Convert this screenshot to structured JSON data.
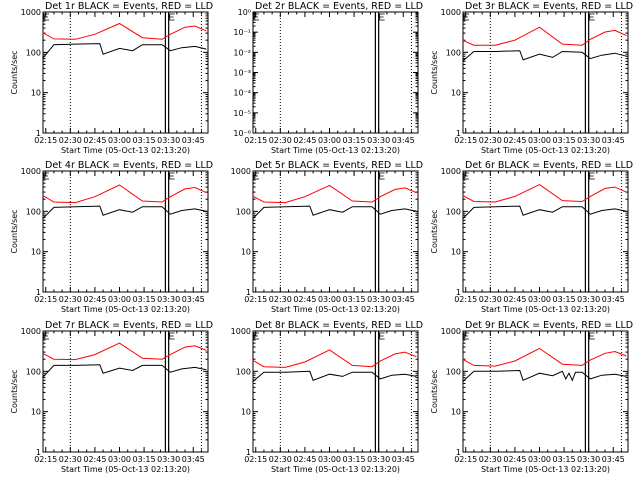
{
  "colors": {
    "events": "#000000",
    "lld": "#ff0000",
    "background": "#ffffff"
  },
  "chart_data": [
    {
      "type": "line",
      "title": "Det 1r BLACK = Events, RED = LLD",
      "xlabel": "Start Time (05-Oct-13 02:13:20)",
      "ylabel": "Counts/sec",
      "yscale": "log",
      "ylim": [
        1,
        1000
      ],
      "ytick_labels": [
        "1",
        "10",
        "100",
        "1000"
      ],
      "xtick_labels": [
        "02:15",
        "02:30",
        "02:45",
        "03:00",
        "03:15",
        "03:30",
        "03:45"
      ],
      "xlim": [
        "02:13:20",
        "03:54"
      ],
      "vlines_dotted": [
        "02:30",
        "03:50"
      ],
      "vlines_solid": [
        "03:28",
        "03:30"
      ],
      "series": [
        {
          "name": "Events",
          "color": "black",
          "x": [
            "02:13",
            "02:20",
            "02:33",
            "02:48",
            "02:50",
            "03:00",
            "03:08",
            "03:14",
            "03:26",
            "03:31",
            "03:38",
            "03:46",
            "03:53"
          ],
          "y": [
            70,
            155,
            160,
            165,
            90,
            125,
            110,
            155,
            155,
            110,
            130,
            140,
            120
          ]
        },
        {
          "name": "LLD",
          "color": "red",
          "x": [
            "02:13",
            "02:20",
            "02:33",
            "02:45",
            "03:00",
            "03:14",
            "03:26",
            "03:31",
            "03:40",
            "03:46",
            "03:53"
          ],
          "y": [
            310,
            215,
            210,
            280,
            520,
            230,
            210,
            280,
            420,
            450,
            340
          ]
        }
      ]
    },
    {
      "type": "line",
      "title": "Det 2r BLACK = Events, RED = LLD",
      "xlabel": "Start Time (05-Oct-13 02:13:20)",
      "ylabel": "",
      "yscale": "log",
      "ylim": [
        1e-06,
        1
      ],
      "ytick_labels": [
        "10⁻⁶",
        "10⁻⁵",
        "10⁻⁴",
        "10⁻³",
        "10⁻²",
        "10⁻¹",
        "10⁰"
      ],
      "xtick_labels": [
        "02:15",
        "02:30",
        "02:45",
        "03:00",
        "03:15",
        "03:30",
        "03:45"
      ],
      "xlim": [
        "02:13:20",
        "03:54"
      ],
      "vlines_dotted": [
        "02:30",
        "03:50"
      ],
      "vlines_solid": [
        "03:28",
        "03:30"
      ],
      "series": []
    },
    {
      "type": "line",
      "title": "Det 3r BLACK = Events, RED = LLD",
      "xlabel": "Start Time (05-Oct-13 02:13:20)",
      "ylabel": "Counts/sec",
      "yscale": "log",
      "ylim": [
        1,
        1000
      ],
      "ytick_labels": [
        "1",
        "10",
        "100",
        "1000"
      ],
      "xtick_labels": [
        "02:15",
        "02:30",
        "02:45",
        "03:00",
        "03:15",
        "03:30",
        "03:45"
      ],
      "xlim": [
        "02:13:20",
        "03:54"
      ],
      "vlines_dotted": [
        "02:30",
        "03:50"
      ],
      "vlines_solid": [
        "03:28",
        "03:30"
      ],
      "series": [
        {
          "name": "Events",
          "color": "black",
          "x": [
            "02:13",
            "02:20",
            "02:33",
            "02:48",
            "02:50",
            "03:00",
            "03:08",
            "03:14",
            "03:26",
            "03:31",
            "03:38",
            "03:46",
            "03:53"
          ],
          "y": [
            60,
            105,
            105,
            110,
            65,
            90,
            75,
            105,
            100,
            70,
            85,
            95,
            80
          ]
        },
        {
          "name": "LLD",
          "color": "red",
          "x": [
            "02:13",
            "02:20",
            "02:33",
            "02:45",
            "03:00",
            "03:14",
            "03:26",
            "03:31",
            "03:40",
            "03:46",
            "03:53"
          ],
          "y": [
            200,
            150,
            150,
            200,
            420,
            160,
            150,
            210,
            320,
            350,
            260
          ]
        }
      ]
    },
    {
      "type": "line",
      "title": "Det 4r BLACK = Events, RED = LLD",
      "xlabel": "Start Time (05-Oct-13 02:13:20)",
      "ylabel": "Counts/sec",
      "yscale": "log",
      "ylim": [
        1,
        1000
      ],
      "ytick_labels": [
        "1",
        "10",
        "100",
        "1000"
      ],
      "xtick_labels": [
        "02:15",
        "02:30",
        "02:45",
        "03:00",
        "03:15",
        "03:30",
        "03:45"
      ],
      "xlim": [
        "02:13:20",
        "03:54"
      ],
      "vlines_dotted": [
        "02:30",
        "03:50"
      ],
      "vlines_solid": [
        "03:28",
        "03:30"
      ],
      "series": [
        {
          "name": "Events",
          "color": "black",
          "x": [
            "02:13",
            "02:20",
            "02:33",
            "02:48",
            "02:50",
            "03:00",
            "03:08",
            "03:14",
            "03:26",
            "03:31",
            "03:38",
            "03:46",
            "03:53"
          ],
          "y": [
            65,
            125,
            130,
            135,
            80,
            110,
            95,
            130,
            130,
            85,
            105,
            115,
            100
          ]
        },
        {
          "name": "LLD",
          "color": "red",
          "x": [
            "02:13",
            "02:20",
            "02:33",
            "02:45",
            "03:00",
            "03:14",
            "03:26",
            "03:31",
            "03:40",
            "03:46",
            "03:53"
          ],
          "y": [
            250,
            170,
            165,
            230,
            450,
            180,
            170,
            230,
            360,
            390,
            290
          ]
        }
      ]
    },
    {
      "type": "line",
      "title": "Det 5r BLACK = Events, RED = LLD",
      "xlabel": "Start Time (05-Oct-13 02:13:20)",
      "ylabel": "",
      "yscale": "log",
      "ylim": [
        1,
        1000
      ],
      "ytick_labels": [
        "1",
        "10",
        "100",
        "1000"
      ],
      "xtick_labels": [
        "02:15",
        "02:30",
        "02:45",
        "03:00",
        "03:15",
        "03:30",
        "03:45"
      ],
      "xlim": [
        "02:13:20",
        "03:54"
      ],
      "vlines_dotted": [
        "02:30",
        "03:50"
      ],
      "vlines_solid": [
        "03:28",
        "03:30"
      ],
      "series": [
        {
          "name": "Events",
          "color": "black",
          "x": [
            "02:13",
            "02:20",
            "02:33",
            "02:48",
            "02:50",
            "03:00",
            "03:08",
            "03:14",
            "03:26",
            "03:31",
            "03:38",
            "03:46",
            "03:53"
          ],
          "y": [
            65,
            125,
            130,
            135,
            80,
            110,
            95,
            130,
            130,
            85,
            105,
            115,
            100
          ]
        },
        {
          "name": "LLD",
          "color": "red",
          "x": [
            "02:13",
            "02:20",
            "02:33",
            "02:45",
            "03:00",
            "03:14",
            "03:26",
            "03:31",
            "03:40",
            "03:46",
            "03:53"
          ],
          "y": [
            240,
            170,
            165,
            230,
            440,
            180,
            170,
            230,
            350,
            380,
            290
          ]
        }
      ]
    },
    {
      "type": "line",
      "title": "Det 6r BLACK = Events, RED = LLD",
      "xlabel": "Start Time (05-Oct-13 02:13:20)",
      "ylabel": "Counts/sec",
      "yscale": "log",
      "ylim": [
        1,
        1000
      ],
      "ytick_labels": [
        "1",
        "10",
        "100",
        "1000"
      ],
      "xtick_labels": [
        "02:15",
        "02:30",
        "02:45",
        "03:00",
        "03:15",
        "03:30",
        "03:45"
      ],
      "xlim": [
        "02:13:20",
        "03:54"
      ],
      "vlines_dotted": [
        "02:30",
        "03:50"
      ],
      "vlines_solid": [
        "03:28",
        "03:30"
      ],
      "series": [
        {
          "name": "Events",
          "color": "black",
          "x": [
            "02:13",
            "02:20",
            "02:33",
            "02:48",
            "02:50",
            "03:00",
            "03:08",
            "03:14",
            "03:26",
            "03:31",
            "03:38",
            "03:46",
            "03:53"
          ],
          "y": [
            65,
            125,
            130,
            135,
            80,
            110,
            95,
            130,
            130,
            85,
            105,
            115,
            100
          ]
        },
        {
          "name": "LLD",
          "color": "red",
          "x": [
            "02:13",
            "02:20",
            "02:33",
            "02:45",
            "03:00",
            "03:14",
            "03:26",
            "03:31",
            "03:40",
            "03:46",
            "03:53"
          ],
          "y": [
            250,
            175,
            170,
            235,
            460,
            185,
            175,
            235,
            370,
            400,
            300
          ]
        }
      ]
    },
    {
      "type": "line",
      "title": "Det 7r BLACK = Events, RED = LLD",
      "xlabel": "Start Time (05-Oct-13 02:13:20)",
      "ylabel": "Counts/sec",
      "yscale": "log",
      "ylim": [
        1,
        1000
      ],
      "ytick_labels": [
        "1",
        "10",
        "100",
        "1000"
      ],
      "xtick_labels": [
        "02:15",
        "02:30",
        "02:45",
        "03:00",
        "03:15",
        "03:30",
        "03:45"
      ],
      "xlim": [
        "02:13:20",
        "03:54"
      ],
      "vlines_dotted": [
        "02:30",
        "03:50"
      ],
      "vlines_solid": [
        "03:28",
        "03:30"
      ],
      "series": [
        {
          "name": "Events",
          "color": "black",
          "x": [
            "02:13",
            "02:20",
            "02:33",
            "02:48",
            "02:50",
            "03:00",
            "03:08",
            "03:14",
            "03:26",
            "03:31",
            "03:38",
            "03:46",
            "03:53"
          ],
          "y": [
            70,
            140,
            140,
            145,
            90,
            120,
            105,
            140,
            140,
            95,
            115,
            125,
            110
          ]
        },
        {
          "name": "LLD",
          "color": "red",
          "x": [
            "02:13",
            "02:20",
            "02:33",
            "02:45",
            "03:00",
            "03:14",
            "03:26",
            "03:31",
            "03:40",
            "03:46",
            "03:53"
          ],
          "y": [
            280,
            200,
            195,
            260,
            500,
            210,
            200,
            260,
            400,
            430,
            330
          ]
        }
      ]
    },
    {
      "type": "line",
      "title": "Det 8r BLACK = Events, RED = LLD",
      "xlabel": "Start Time (05-Oct-13 02:13:20)",
      "ylabel": "",
      "yscale": "log",
      "ylim": [
        1,
        1000
      ],
      "ytick_labels": [
        "1",
        "10",
        "100",
        "1000"
      ],
      "xtick_labels": [
        "02:15",
        "02:30",
        "02:45",
        "03:00",
        "03:15",
        "03:30",
        "03:45"
      ],
      "xlim": [
        "02:13:20",
        "03:54"
      ],
      "vlines_dotted": [
        "02:30",
        "03:50"
      ],
      "vlines_solid": [
        "03:28",
        "03:30"
      ],
      "series": [
        {
          "name": "Events",
          "color": "black",
          "x": [
            "02:13",
            "02:20",
            "02:33",
            "02:48",
            "02:50",
            "03:00",
            "03:08",
            "03:14",
            "03:26",
            "03:31",
            "03:38",
            "03:46",
            "03:53"
          ],
          "y": [
            55,
            95,
            95,
            100,
            60,
            85,
            75,
            95,
            95,
            65,
            80,
            85,
            75
          ]
        },
        {
          "name": "LLD",
          "color": "red",
          "x": [
            "02:13",
            "02:20",
            "02:33",
            "02:45",
            "03:00",
            "03:14",
            "03:26",
            "03:31",
            "03:40",
            "03:46",
            "03:53"
          ],
          "y": [
            190,
            130,
            125,
            170,
            340,
            140,
            130,
            180,
            270,
            300,
            230
          ]
        }
      ]
    },
    {
      "type": "line",
      "title": "Det 9r BLACK = Events, RED = LLD",
      "xlabel": "Start Time (05-Oct-13 02:13:20)",
      "ylabel": "Counts/sec",
      "yscale": "log",
      "ylim": [
        1,
        1000
      ],
      "ytick_labels": [
        "1",
        "10",
        "100",
        "1000"
      ],
      "xtick_labels": [
        "02:15",
        "02:30",
        "02:45",
        "03:00",
        "03:15",
        "03:30",
        "03:45"
      ],
      "xlim": [
        "02:13:20",
        "03:54"
      ],
      "vlines_dotted": [
        "02:30",
        "03:50"
      ],
      "vlines_solid": [
        "03:28",
        "03:30"
      ],
      "series": [
        {
          "name": "Events",
          "color": "black",
          "x": [
            "02:13",
            "02:20",
            "02:33",
            "02:48",
            "02:50",
            "03:00",
            "03:08",
            "03:14",
            "03:16",
            "03:18",
            "03:20",
            "03:22",
            "03:26",
            "03:31",
            "03:38",
            "03:46",
            "03:53"
          ],
          "y": [
            55,
            100,
            100,
            105,
            60,
            90,
            78,
            100,
            65,
            90,
            60,
            95,
            95,
            65,
            80,
            85,
            75
          ]
        },
        {
          "name": "LLD",
          "color": "red",
          "x": [
            "02:13",
            "02:20",
            "02:33",
            "02:45",
            "03:00",
            "03:14",
            "03:26",
            "03:31",
            "03:40",
            "03:46",
            "03:53"
          ],
          "y": [
            200,
            140,
            135,
            180,
            370,
            150,
            140,
            190,
            280,
            310,
            240
          ]
        }
      ]
    }
  ]
}
